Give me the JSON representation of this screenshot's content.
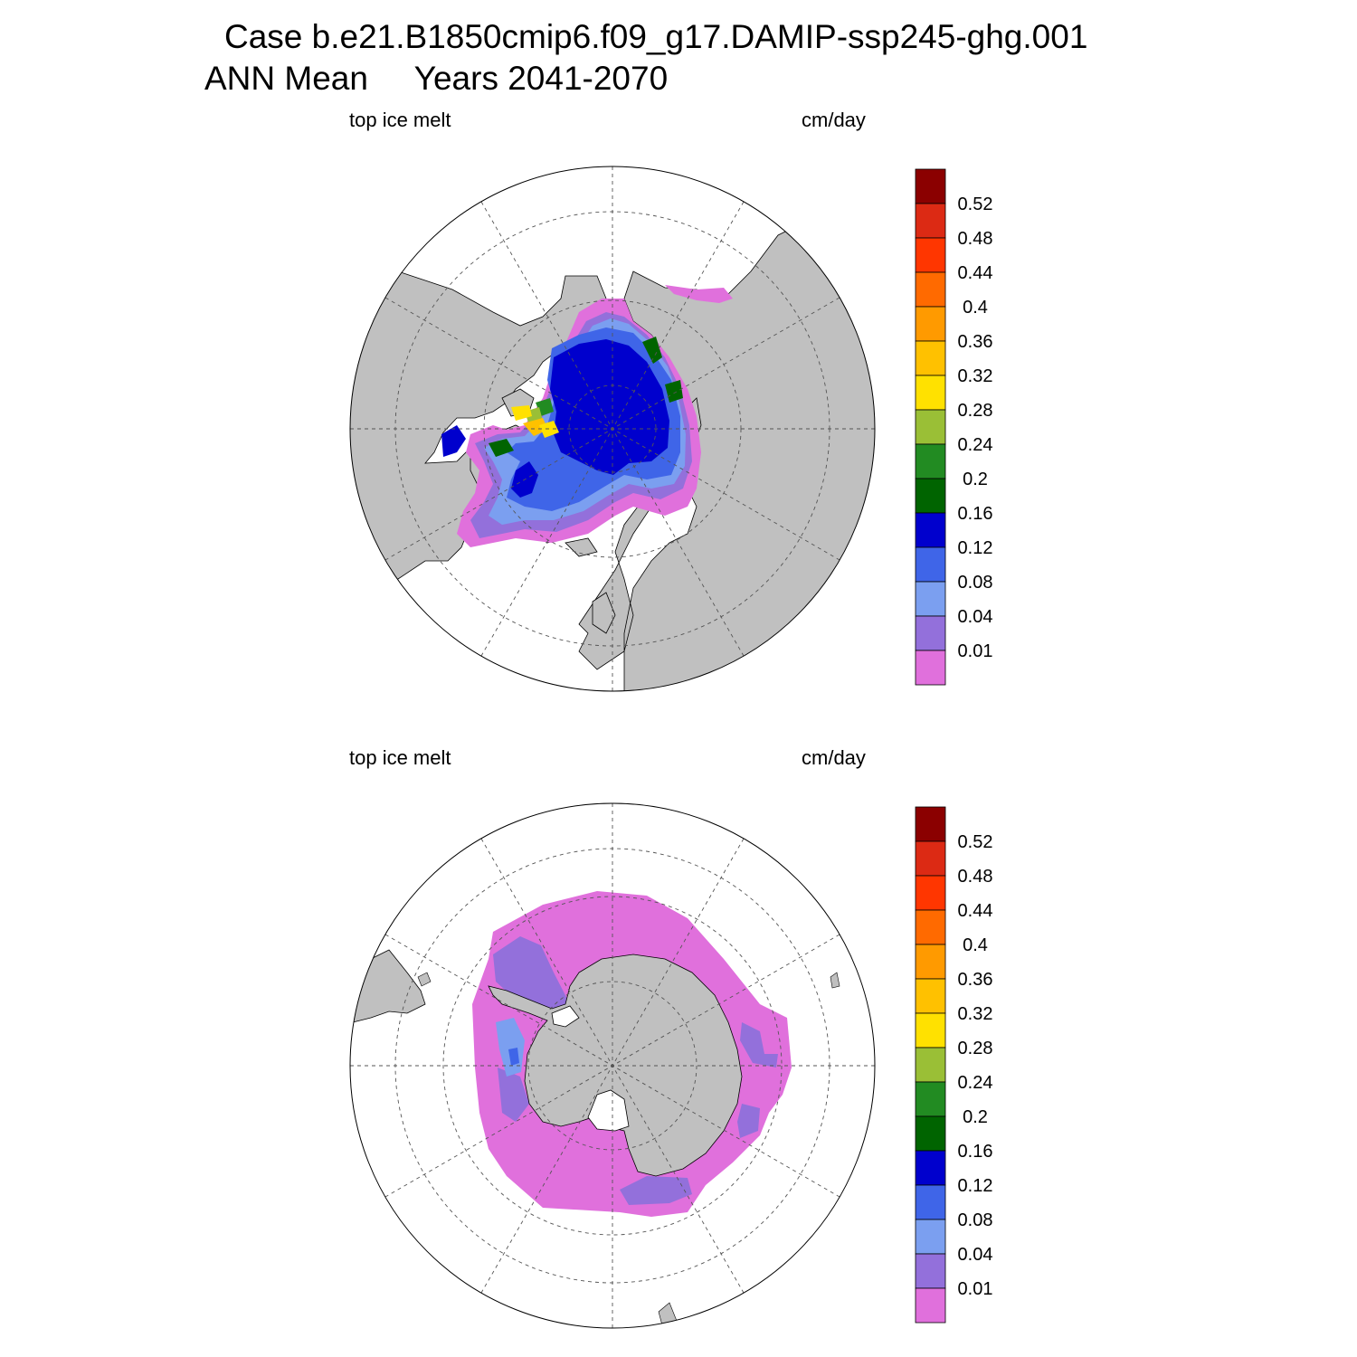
{
  "header": {
    "line1": "Case b.e21.B1850cmip6.f09_g17.DAMIP-ssp245-ghg.001",
    "line2": "ANN Mean     Years 2041-2070"
  },
  "panels": [
    {
      "id": "north",
      "left_label": "top ice melt",
      "right_label": "cm/day",
      "hemisphere": "Arctic (north polar stereographic)"
    },
    {
      "id": "south",
      "left_label": "top ice melt",
      "right_label": "cm/day",
      "hemisphere": "Antarctic (south polar stereographic)"
    }
  ],
  "colorbar": {
    "levels": [
      "0.01",
      "0.04",
      "0.08",
      "0.12",
      "0.16",
      "0.2",
      "0.24",
      "0.28",
      "0.32",
      "0.36",
      "0.4",
      "0.44",
      "0.48",
      "0.52"
    ],
    "colors": [
      "#e070dc",
      "#9370db",
      "#7b9ff0",
      "#3f65e8",
      "#0000cd",
      "#006400",
      "#228b22",
      "#9abf36",
      "#ffe100",
      "#ffc100",
      "#ff9a00",
      "#ff6a00",
      "#ff3600",
      "#dc2a14",
      "#8b0000"
    ]
  },
  "colors": {
    "land": "#c0c0c0",
    "ocean": "#ffffff",
    "grid": "#555555"
  }
}
